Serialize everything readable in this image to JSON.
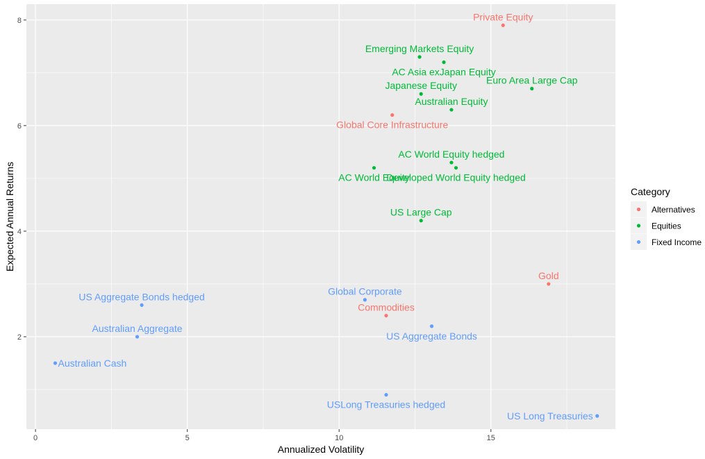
{
  "chart_data": {
    "type": "scatter",
    "title": "",
    "xlabel": "Annualized Volatility",
    "ylabel": "Expected Annual Returns",
    "xlim": [
      -0.3,
      19.1
    ],
    "ylim": [
      0.25,
      8.3
    ],
    "x_ticks": [
      0,
      5,
      10,
      15
    ],
    "x_tick_labels": [
      "0",
      "5",
      "10",
      "15"
    ],
    "y_ticks": [
      2,
      4,
      6,
      8
    ],
    "y_tick_labels": [
      "2",
      "4",
      "6",
      "8"
    ],
    "grid": true,
    "legend": {
      "title": "Category",
      "position": "right",
      "entries": [
        {
          "name": "Alternatives",
          "color": "#F8766D"
        },
        {
          "name": "Equities",
          "color": "#00BA38"
        },
        {
          "name": "Fixed Income",
          "color": "#619CFF"
        }
      ]
    },
    "points": [
      {
        "label": "Private Equity",
        "category": "Alternatives",
        "x": 15.4,
        "y": 7.9,
        "label_pos": "above"
      },
      {
        "label": "Global Core Infrastructure",
        "category": "Alternatives",
        "x": 11.75,
        "y": 6.2,
        "label_pos": "below"
      },
      {
        "label": "Gold",
        "category": "Alternatives",
        "x": 16.9,
        "y": 3.0,
        "label_pos": "above"
      },
      {
        "label": "Commodities",
        "category": "Alternatives",
        "x": 11.55,
        "y": 2.4,
        "label_pos": "above"
      },
      {
        "label": "Emerging Markets Equity",
        "category": "Equities",
        "x": 12.65,
        "y": 7.3,
        "label_pos": "above"
      },
      {
        "label": "AC Asia exJapan Equity",
        "category": "Equities",
        "x": 13.45,
        "y": 7.2,
        "label_pos": "below"
      },
      {
        "label": "Euro Area Large Cap",
        "category": "Equities",
        "x": 16.35,
        "y": 6.7,
        "label_pos": "above"
      },
      {
        "label": "Japanese Equity",
        "category": "Equities",
        "x": 12.7,
        "y": 6.6,
        "label_pos": "above"
      },
      {
        "label": "Australian Equity",
        "category": "Equities",
        "x": 13.7,
        "y": 6.3,
        "label_pos": "above"
      },
      {
        "label": "AC World Equity hedged",
        "category": "Equities",
        "x": 13.7,
        "y": 5.3,
        "label_pos": "above"
      },
      {
        "label": "AC World Equity",
        "category": "Equities",
        "x": 11.15,
        "y": 5.2,
        "label_pos": "below"
      },
      {
        "label": "Developed World Equity hedged",
        "category": "Equities",
        "x": 13.85,
        "y": 5.2,
        "label_pos": "below"
      },
      {
        "label": "US Large Cap",
        "category": "Equities",
        "x": 12.7,
        "y": 4.2,
        "label_pos": "above"
      },
      {
        "label": "US Aggregate Bonds hedged",
        "category": "Fixed Income",
        "x": 3.5,
        "y": 2.6,
        "label_pos": "above"
      },
      {
        "label": "Global Corporate",
        "category": "Fixed Income",
        "x": 10.85,
        "y": 2.7,
        "label_pos": "above"
      },
      {
        "label": "Australian Aggregate",
        "category": "Fixed Income",
        "x": 3.35,
        "y": 2.0,
        "label_pos": "above"
      },
      {
        "label": "US Aggregate Bonds",
        "category": "Fixed Income",
        "x": 13.05,
        "y": 2.2,
        "label_pos": "below"
      },
      {
        "label": "Australian Cash",
        "category": "Fixed Income",
        "x": 0.65,
        "y": 1.5,
        "label_pos": "right"
      },
      {
        "label": "USLong Treasuries hedged",
        "category": "Fixed Income",
        "x": 11.55,
        "y": 0.9,
        "label_pos": "below"
      },
      {
        "label": "US Long Treasuries",
        "category": "Fixed Income",
        "x": 18.5,
        "y": 0.5,
        "label_pos": "left"
      }
    ]
  }
}
